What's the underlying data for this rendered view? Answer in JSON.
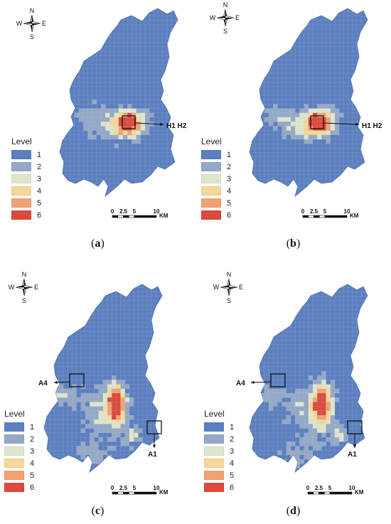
{
  "compass": {
    "n": "N",
    "s": "S",
    "e": "E",
    "w": "W"
  },
  "legend": {
    "title": "Level",
    "levels": [
      {
        "label": "1",
        "color": "#5b7fbf"
      },
      {
        "label": "2",
        "color": "#95a9c6"
      },
      {
        "label": "3",
        "color": "#dfe5cb"
      },
      {
        "label": "4",
        "color": "#f5d79a"
      },
      {
        "label": "5",
        "color": "#f0a274"
      },
      {
        "label": "6",
        "color": "#db4a3c"
      }
    ]
  },
  "scale_bar": {
    "labels": [
      "0",
      "2.5",
      "5",
      "10"
    ],
    "unit": "KM"
  },
  "panels": [
    {
      "id": "a",
      "caption": "a",
      "annotations": [
        {
          "label": "H1 H2"
        }
      ]
    },
    {
      "id": "b",
      "caption": "b",
      "annotations": [
        {
          "label": "H1 H2"
        }
      ]
    },
    {
      "id": "c",
      "caption": "c",
      "annotations": [
        {
          "label": "A4"
        },
        {
          "label": "A1"
        }
      ]
    },
    {
      "id": "d",
      "caption": "d",
      "annotations": [
        {
          "label": "A4"
        },
        {
          "label": "A1"
        }
      ]
    }
  ]
}
